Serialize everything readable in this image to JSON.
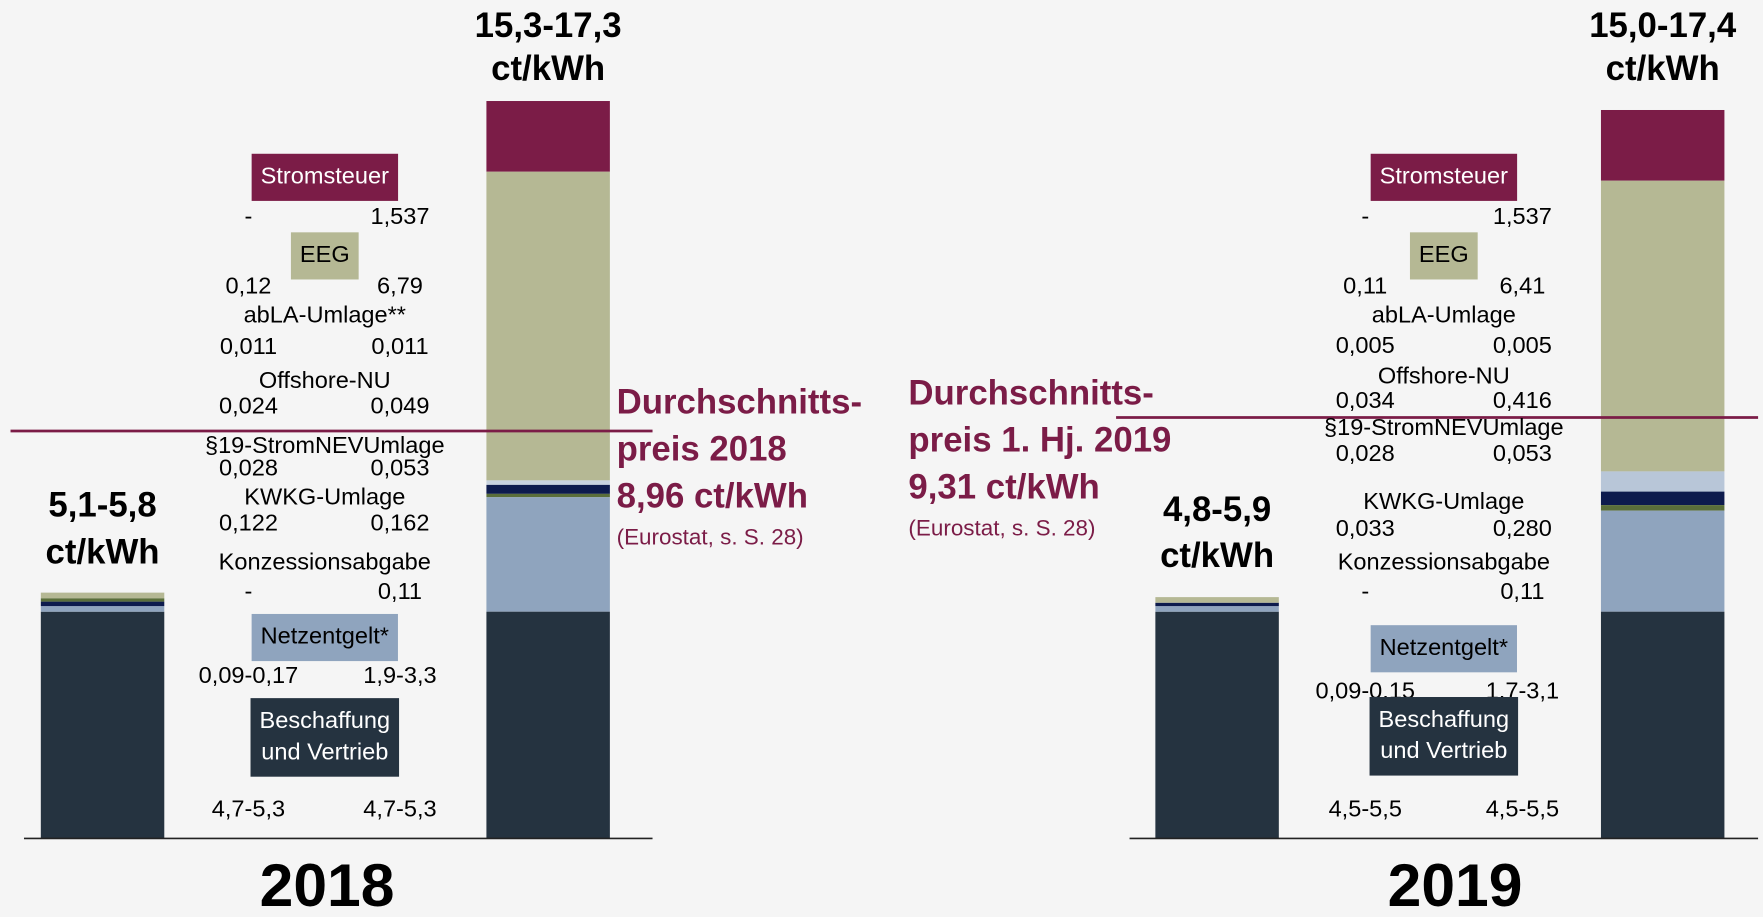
{
  "panels": [
    {
      "year": "2018",
      "total_small": [
        "5,1-5,8",
        "ct/kWh"
      ],
      "total_big": [
        "15,3-17,3",
        "ct/kWh"
      ],
      "average": {
        "lines": [
          "Durchschnitts-",
          "preis 2018"
        ],
        "value": "8,96 ct/kWh",
        "source": "(Eurostat, s. S. 28)"
      },
      "components": [
        {
          "name": [
            "Stromsteuer"
          ],
          "low": "-",
          "high": "1,537"
        },
        {
          "name": [
            "EEG"
          ],
          "low": "0,12",
          "high": "6,79"
        },
        {
          "name": [
            "abLA-Umlage**"
          ],
          "low": "0,011",
          "high": "0,011"
        },
        {
          "name": [
            "Offshore-NU"
          ],
          "low": "0,024",
          "high": "0,049"
        },
        {
          "name": [
            "§19-StromNEVUmlage"
          ],
          "low": "0,028",
          "high": "0,053"
        },
        {
          "name": [
            "KWKG-Umlage"
          ],
          "low": "0,122",
          "high": "0,162"
        },
        {
          "name": [
            "Konzessionsabgabe"
          ],
          "low": "-",
          "high": "0,11"
        },
        {
          "name": [
            "Netzentgelt*"
          ],
          "low": "0,09-0,17",
          "high": "1,9-3,3"
        },
        {
          "name": [
            "Beschaffung",
            "und Vertrieb"
          ],
          "low": "4,7-5,3",
          "high": "4,7-5,3"
        }
      ]
    },
    {
      "year": "2019",
      "total_small": [
        "4,8-5,9",
        "ct/kWh"
      ],
      "total_big": [
        "15,0-17,4",
        "ct/kWh"
      ],
      "average": {
        "lines": [
          "Durchschnitts-",
          "preis 1. Hj. 2019"
        ],
        "value": "9,31 ct/kWh",
        "source": "(Eurostat, s. S. 28)"
      },
      "components": [
        {
          "name": [
            "Stromsteuer"
          ],
          "low": "-",
          "high": "1,537"
        },
        {
          "name": [
            "EEG"
          ],
          "low": "0,11",
          "high": "6,41"
        },
        {
          "name": [
            "abLA-Umlage"
          ],
          "low": "0,005",
          "high": "0,005"
        },
        {
          "name": [
            "Offshore-NU"
          ],
          "low": "0,034",
          "high": "0,416"
        },
        {
          "name": [
            "§19-StromNEVUmlage"
          ],
          "low": "0,028",
          "high": "0,053"
        },
        {
          "name": [
            "KWKG-Umlage"
          ],
          "low": "0,033",
          "high": "0,280"
        },
        {
          "name": [
            "Konzessionsabgabe"
          ],
          "low": "-",
          "high": "0,11"
        },
        {
          "name": [
            "Netzentgelt*"
          ],
          "low": "0,09-0,15",
          "high": "1,7-3,1"
        },
        {
          "name": [
            "Beschaffung",
            "und Vertrieb"
          ],
          "low": "4,5-5,5",
          "high": "4,5-5,5"
        }
      ]
    }
  ]
}
